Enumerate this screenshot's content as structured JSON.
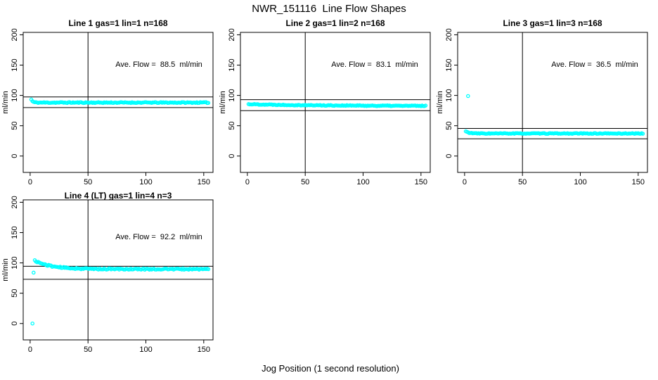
{
  "page": {
    "title": "NWR_151116  Line Flow Shapes",
    "xlabel": "Jog Position (1 second resolution)"
  },
  "colors": {
    "points": "#00FFFF",
    "axis": "#000000",
    "background": "#FFFFFF"
  },
  "points_style": {
    "shape": "open-circle",
    "radius_px": 2.1
  },
  "chart_data": [
    {
      "type": "scatter",
      "title": "Line 1 gas=1 lin=1 n=168",
      "annotation": "Ave. Flow =  88.5  ml/min",
      "ave_flow_ml_min": 88.5,
      "n": 168,
      "ylabel": "ml/min",
      "xlim": [
        -6,
        158
      ],
      "ylim": [
        -27,
        204
      ],
      "x_ticks": [
        0,
        50,
        100,
        150
      ],
      "y_ticks": [
        0,
        50,
        100,
        150,
        200
      ],
      "vline_x": 50,
      "hlines": [
        97.5,
        79.9
      ],
      "series": {
        "x_start": 1,
        "x_end": 154,
        "step": 1,
        "settle": 88.2,
        "start_amp": 5,
        "decay_tau": 1.2,
        "noise": 0.8,
        "seed": 11,
        "description": "flow settles immediately to ~88 ml/min and stays flat"
      },
      "outliers": []
    },
    {
      "type": "scatter",
      "title": "Line 2 gas=1 lin=2 n=168",
      "annotation": "Ave. Flow =  83.1  ml/min",
      "ave_flow_ml_min": 83.1,
      "n": 168,
      "ylabel": "ml/min",
      "xlim": [
        -6,
        158
      ],
      "ylim": [
        -27,
        204
      ],
      "x_ticks": [
        0,
        50,
        100,
        150
      ],
      "y_ticks": [
        0,
        50,
        100,
        150,
        200
      ],
      "vline_x": 50,
      "hlines": [
        93.0,
        74.8
      ],
      "series": {
        "x_start": 1,
        "x_end": 154,
        "step": 1,
        "settle": 82.6,
        "start_amp": 3,
        "decay_tau": 60,
        "noise": 0.7,
        "seed": 22,
        "description": "flow drifts slightly down from ~85 to ~83 ml/min"
      },
      "outliers": []
    },
    {
      "type": "scatter",
      "title": "Line 3 gas=1 lin=3 n=168",
      "annotation": "Ave. Flow =  36.5  ml/min",
      "ave_flow_ml_min": 36.5,
      "n": 168,
      "ylabel": "ml/min",
      "xlim": [
        -6,
        158
      ],
      "ylim": [
        -27,
        204
      ],
      "x_ticks": [
        0,
        50,
        100,
        150
      ],
      "y_ticks": [
        0,
        50,
        100,
        150,
        200
      ],
      "vline_x": 50,
      "hlines": [
        45.5,
        28.5
      ],
      "series": {
        "x_start": 1,
        "x_end": 154,
        "step": 1,
        "settle": 37.2,
        "start_amp": 3.5,
        "decay_tau": 3,
        "noise": 0.6,
        "seed": 33,
        "description": "one startup spike near 99 ml/min then flat band ~37 ml/min"
      },
      "outliers": [
        [
          3,
          99
        ]
      ]
    },
    {
      "type": "scatter",
      "title": "Line 4 (LT) gas=1 lin=4 n=3",
      "annotation": "Ave. Flow =  92.2  ml/min",
      "ave_flow_ml_min": 92.2,
      "n": 3,
      "ylabel": "ml/min",
      "xlim": [
        -6,
        158
      ],
      "ylim": [
        -27,
        204
      ],
      "x_ticks": [
        0,
        50,
        100,
        150
      ],
      "y_ticks": [
        0,
        50,
        100,
        150,
        200
      ],
      "vline_x": 50,
      "hlines": [
        94.5,
        73.0
      ],
      "series": {
        "x_start": 4,
        "x_end": 154,
        "step": 1,
        "settle": 89.8,
        "start_amp": 14,
        "decay_tau": 14,
        "noise": 1.1,
        "seed": 44,
        "description": "starts ~104 ml/min, decays to ~90 ml/min; one point at 0"
      },
      "outliers": [
        [
          2,
          0
        ],
        [
          3,
          84
        ]
      ]
    }
  ]
}
